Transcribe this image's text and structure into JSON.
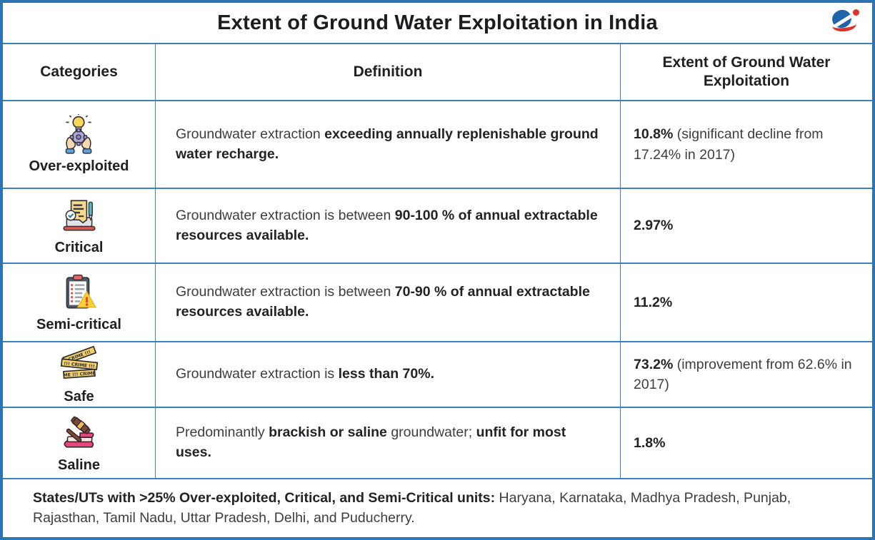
{
  "page": {
    "title": "Extent of Ground Water Exploitation in India",
    "logo_icon": "orbit-globe-logo",
    "accent_colors": {
      "frame_blue": "#2d74b4",
      "line_blue": "#3b7fbc",
      "logo_blue": "#1e63ac",
      "logo_red": "#e03028"
    }
  },
  "table": {
    "headers": [
      "Categories",
      "Definition",
      "Extent of Ground Water Exploitation"
    ],
    "rows": [
      {
        "category": "Over-exploited",
        "icon": "hands-holding-gear-bulb-icon",
        "definition": [
          {
            "t": "Groundwater extraction ",
            "b": false
          },
          {
            "t": "exceeding annually replenishable ground water recharge.",
            "b": true
          }
        ],
        "extent": [
          {
            "t": "10.8%",
            "b": true
          },
          {
            "t": " (significant decline from 17.24% in 2017)",
            "b": false
          }
        ]
      },
      {
        "category": "Critical",
        "icon": "document-check-pen-icon",
        "definition": [
          {
            "t": "Groundwater extraction is between ",
            "b": false
          },
          {
            "t": "90-100 % of annual extractable resources available.",
            "b": true
          }
        ],
        "extent": [
          {
            "t": "2.97%",
            "b": true
          }
        ]
      },
      {
        "category": "Semi-critical",
        "icon": "clipboard-warning-icon",
        "definition": [
          {
            "t": "Groundwater extraction is between ",
            "b": false
          },
          {
            "t": "70-90 % of annual extractable resources available.",
            "b": true
          }
        ],
        "extent": [
          {
            "t": "11.2%",
            "b": true
          }
        ]
      },
      {
        "category": "Safe",
        "icon": "crime-tape-icon",
        "definition": [
          {
            "t": "Groundwater extraction is ",
            "b": false
          },
          {
            "t": "less than 70%.",
            "b": true
          }
        ],
        "extent": [
          {
            "t": "73.2%",
            "b": true
          },
          {
            "t": " (improvement from 62.6% in 2017)",
            "b": false
          }
        ]
      },
      {
        "category": "Saline",
        "icon": "gavel-book-icon",
        "definition": [
          {
            "t": "Predominantly ",
            "b": false
          },
          {
            "t": "brackish or saline",
            "b": true
          },
          {
            "t": " groundwater; ",
            "b": false
          },
          {
            "t": "unfit for most uses.",
            "b": true
          }
        ],
        "extent": [
          {
            "t": "1.8%",
            "b": true
          }
        ]
      }
    ],
    "footnote": [
      {
        "t": "States/UTs with >25% Over-exploited, Critical, and Semi-Critical units: ",
        "b": true
      },
      {
        "t": "Haryana, Karnataka, Madhya Pradesh, Punjab, Rajasthan, Tamil Nadu, Uttar Pradesh, Delhi, and Puducherry.",
        "b": false
      }
    ]
  }
}
